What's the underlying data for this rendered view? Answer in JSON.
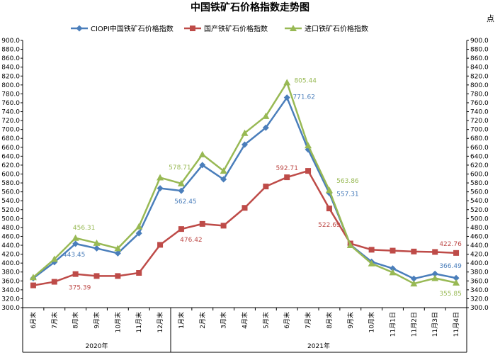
{
  "chart_data": {
    "type": "line",
    "title": "中国铁矿石价格指数走势图",
    "corner_text": "点",
    "xlabel": "",
    "ylabel": "",
    "ylim": [
      300,
      900
    ],
    "ytick_step": 20,
    "grid": false,
    "legend_position": "top",
    "categories": [
      "6月末",
      "7月末",
      "8月末",
      "9月末",
      "10月末",
      "11月末",
      "12月末",
      "1月末",
      "2月末",
      "3月末",
      "4月末",
      "5月末",
      "6月末",
      "7月末",
      "8月末",
      "9月末",
      "10月末",
      "11月1日",
      "11月2日",
      "11月3日",
      "11月4日"
    ],
    "year_groups": [
      {
        "label": "2020年",
        "from": 0,
        "to": 6
      },
      {
        "label": "2021年",
        "from": 7,
        "to": 20
      }
    ],
    "series": [
      {
        "name": "CIOPI中国铁矿石价格指数",
        "color": "#4a7ebb",
        "marker": "diamond",
        "values": [
          366,
          402,
          443.45,
          433,
          422,
          467,
          568,
          562.45,
          620,
          588,
          666,
          704,
          771.62,
          655,
          557.31,
          441,
          403,
          388,
          365,
          376,
          366.49
        ]
      },
      {
        "name": "国产铁矿石价格指数",
        "color": "#be4b48",
        "marker": "square",
        "values": [
          350,
          358,
          375.39,
          371,
          371,
          378,
          441,
          476.42,
          488,
          484,
          524,
          572,
          592.71,
          607,
          522.69,
          444,
          430,
          428,
          426,
          425,
          422.76
        ]
      },
      {
        "name": "进口铁矿石价格指数",
        "color": "#98b954",
        "marker": "triangle",
        "values": [
          368,
          409,
          456.31,
          445,
          433,
          482,
          592,
          578.71,
          644,
          607,
          692,
          730,
          805.44,
          664,
          563.86,
          440,
          399,
          379,
          354,
          366,
          355.85
        ]
      }
    ],
    "annotations": [
      {
        "series": 0,
        "index": 2,
        "text": "443.45",
        "dx": -2,
        "dy": 18
      },
      {
        "series": 0,
        "index": 7,
        "text": "562.45",
        "dx": 6,
        "dy": 18
      },
      {
        "series": 0,
        "index": 12,
        "text": "771.62",
        "dx": 24,
        "dy": 2
      },
      {
        "series": 0,
        "index": 14,
        "text": "557.31",
        "dx": 26,
        "dy": 4
      },
      {
        "series": 0,
        "index": 20,
        "text": "366.49",
        "dx": -8,
        "dy": -14
      },
      {
        "series": 1,
        "index": 2,
        "text": "375.39",
        "dx": 6,
        "dy": 22
      },
      {
        "series": 1,
        "index": 7,
        "text": "476.42",
        "dx": 14,
        "dy": 18
      },
      {
        "series": 1,
        "index": 12,
        "text": "592.71",
        "dx": 0,
        "dy": -10
      },
      {
        "series": 1,
        "index": 14,
        "text": "522.69",
        "dx": 0,
        "dy": 26
      },
      {
        "series": 1,
        "index": 20,
        "text": "422.76",
        "dx": -8,
        "dy": -10
      },
      {
        "series": 2,
        "index": 2,
        "text": "456.31",
        "dx": 12,
        "dy": -12
      },
      {
        "series": 2,
        "index": 7,
        "text": "578.71",
        "dx": -2,
        "dy": -20
      },
      {
        "series": 2,
        "index": 12,
        "text": "805.44",
        "dx": 26,
        "dy": 0
      },
      {
        "series": 2,
        "index": 14,
        "text": "563.86",
        "dx": 26,
        "dy": -10
      },
      {
        "series": 2,
        "index": 20,
        "text": "355.85",
        "dx": -8,
        "dy": 18
      }
    ]
  }
}
